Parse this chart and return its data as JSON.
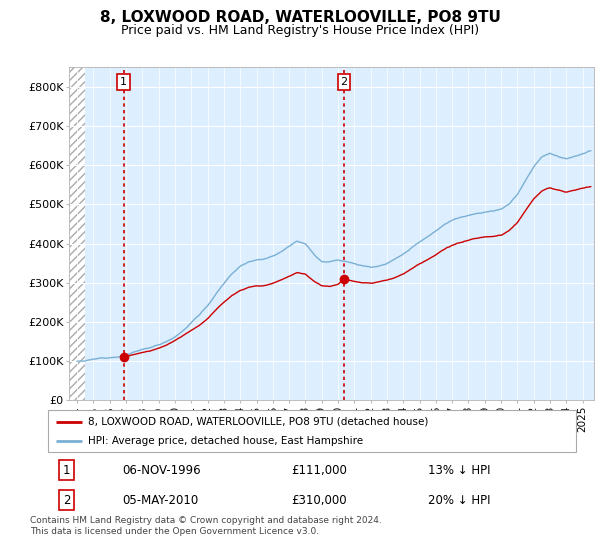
{
  "title": "8, LOXWOOD ROAD, WATERLOOVILLE, PO8 9TU",
  "subtitle": "Price paid vs. HM Land Registry's House Price Index (HPI)",
  "title_fontsize": 11,
  "subtitle_fontsize": 9,
  "ylim": [
    0,
    850000
  ],
  "yticks": [
    0,
    100000,
    200000,
    300000,
    400000,
    500000,
    600000,
    700000,
    800000
  ],
  "ytick_labels": [
    "£0",
    "£100K",
    "£200K",
    "£300K",
    "£400K",
    "£500K",
    "£600K",
    "£700K",
    "£800K"
  ],
  "hpi_color": "#7ab0d4",
  "price_color": "#cc0000",
  "vline_color": "#cc0000",
  "marker_color": "#cc0000",
  "sale1_date": 1996.85,
  "sale1_price": 111000,
  "sale2_date": 2010.37,
  "sale2_price": 310000,
  "hatch_region_end": 1994.5,
  "xlim_start": 1993.5,
  "xlim_end": 2025.7,
  "legend_line1": "8, LOXWOOD ROAD, WATERLOOVILLE, PO8 9TU (detached house)",
  "legend_line2": "HPI: Average price, detached house, East Hampshire",
  "table_row1": [
    "1",
    "06-NOV-1996",
    "£111,000",
    "13% ↓ HPI"
  ],
  "table_row2": [
    "2",
    "05-MAY-2010",
    "£310,000",
    "20% ↓ HPI"
  ],
  "footnote": "Contains HM Land Registry data © Crown copyright and database right 2024.\nThis data is licensed under the Open Government Licence v3.0.",
  "plot_bg": "#ddeeff",
  "grid_color": "#ffffff",
  "hpi_curve": {
    "1994.0": 100000,
    "1994.5": 102000,
    "1995.0": 105000,
    "1995.5": 108000,
    "1996.0": 112000,
    "1996.5": 115000,
    "1997.0": 120000,
    "1997.5": 127000,
    "1998.0": 133000,
    "1998.5": 138000,
    "1999.0": 145000,
    "1999.5": 155000,
    "2000.0": 167000,
    "2000.5": 185000,
    "2001.0": 205000,
    "2001.5": 225000,
    "2002.0": 248000,
    "2002.5": 278000,
    "2003.0": 305000,
    "2003.5": 330000,
    "2004.0": 350000,
    "2004.5": 362000,
    "2005.0": 368000,
    "2005.5": 372000,
    "2006.0": 380000,
    "2006.5": 393000,
    "2007.0": 408000,
    "2007.5": 420000,
    "2008.0": 415000,
    "2008.5": 390000,
    "2009.0": 368000,
    "2009.5": 370000,
    "2010.0": 375000,
    "2010.5": 373000,
    "2011.0": 368000,
    "2011.5": 362000,
    "2012.0": 358000,
    "2012.5": 362000,
    "2013.0": 368000,
    "2013.5": 378000,
    "2014.0": 390000,
    "2014.5": 405000,
    "2015.0": 420000,
    "2015.5": 432000,
    "2016.0": 445000,
    "2016.5": 460000,
    "2017.0": 472000,
    "2017.5": 480000,
    "2018.0": 487000,
    "2018.5": 492000,
    "2019.0": 495000,
    "2019.5": 498000,
    "2020.0": 500000,
    "2020.5": 515000,
    "2021.0": 540000,
    "2021.5": 575000,
    "2022.0": 610000,
    "2022.5": 635000,
    "2023.0": 645000,
    "2023.5": 638000,
    "2024.0": 632000,
    "2024.5": 638000,
    "2025.0": 645000,
    "2025.5": 650000
  },
  "red_curve_s1_to_s2": {
    "1996.85": 111000,
    "1997.0": 112000,
    "1997.5": 117000,
    "1998.0": 122000,
    "1998.5": 126000,
    "1999.0": 132000,
    "1999.5": 140000,
    "2000.0": 151000,
    "2000.5": 165000,
    "2001.0": 178000,
    "2001.5": 192000,
    "2002.0": 208000,
    "2002.5": 230000,
    "2003.0": 250000,
    "2003.5": 268000,
    "2004.0": 282000,
    "2004.5": 290000,
    "2005.0": 294000,
    "2005.5": 295000,
    "2006.0": 300000,
    "2006.5": 308000,
    "2007.0": 318000,
    "2007.5": 326000,
    "2008.0": 322000,
    "2008.5": 305000,
    "2009.0": 292000,
    "2009.5": 290000,
    "2010.0": 295000,
    "2010.37": 310000
  },
  "red_curve_s2_onwards": {
    "2010.37": 310000,
    "2010.5": 308000,
    "2011.0": 304000,
    "2011.5": 299000,
    "2012.0": 296000,
    "2012.5": 299000,
    "2013.0": 304000,
    "2013.5": 312000,
    "2014.0": 322000,
    "2014.5": 334000,
    "2015.0": 347000,
    "2015.5": 357000,
    "2016.0": 368000,
    "2016.5": 380000,
    "2017.0": 390000,
    "2017.5": 396000,
    "2018.0": 402000,
    "2018.5": 406000,
    "2019.0": 409000,
    "2019.5": 411000,
    "2020.0": 413000,
    "2020.5": 425000,
    "2021.0": 446000,
    "2021.5": 475000,
    "2022.0": 504000,
    "2022.5": 524000,
    "2023.0": 532000,
    "2023.5": 527000,
    "2024.0": 522000,
    "2024.5": 527000,
    "2025.0": 532000,
    "2025.5": 536000
  }
}
